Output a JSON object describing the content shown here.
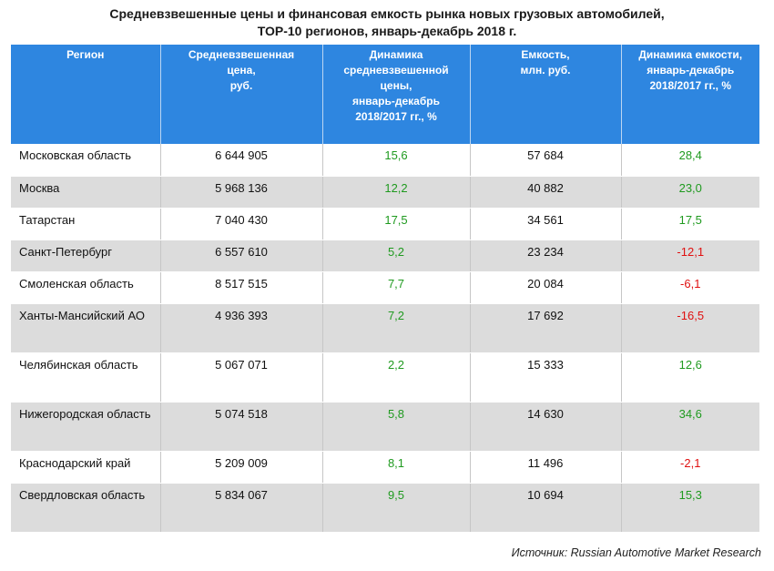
{
  "title": {
    "line1": "Средневзвешенные цены и финансовая емкость рынка новых грузовых автомобилей,",
    "line2": "ТОР-10 регионов, январь-декабрь 2018 г."
  },
  "table": {
    "headers": [
      "Регион",
      "Средневзвешенная цена, руб.",
      "Динамика средневзвешенной цены, январь-декабрь 2018/2017 гг., %",
      "Емкость, млн. руб.",
      "Динамика емкости, январь-декабрь 2018/2017 гг., %"
    ],
    "header_lines": [
      [
        "Регион"
      ],
      [
        "Средневзвешенная",
        "цена,",
        "руб."
      ],
      [
        "Динамика",
        "средневзвешенной",
        "цены,",
        "январь-декабрь",
        "2018/2017 гг., %"
      ],
      [
        "Емкость,",
        "млн. руб."
      ],
      [
        "Динамика емкости,",
        "январь-декабрь",
        "2018/2017 гг., %"
      ]
    ],
    "rows": [
      {
        "region": "Московская область",
        "price": "6 644 905",
        "price_dyn": "15,6",
        "capacity": "57 684",
        "capacity_dyn": "28,4"
      },
      {
        "region": "Москва",
        "price": "5 968 136",
        "price_dyn": "12,2",
        "capacity": "40 882",
        "capacity_dyn": "23,0"
      },
      {
        "region": "Татарстан",
        "price": "7 040 430",
        "price_dyn": "17,5",
        "capacity": "34 561",
        "capacity_dyn": "17,5"
      },
      {
        "region": "Санкт-Петербург",
        "price": "6 557 610",
        "price_dyn": "5,2",
        "capacity": "23 234",
        "capacity_dyn": "-12,1"
      },
      {
        "region": "Смоленская область",
        "price": "8 517 515",
        "price_dyn": "7,7",
        "capacity": "20 084",
        "capacity_dyn": "-6,1"
      },
      {
        "region": "Ханты-Мансийский АО",
        "price": "4 936 393",
        "price_dyn": "7,2",
        "capacity": "17 692",
        "capacity_dyn": "-16,5"
      },
      {
        "region": "Челябинская область",
        "price": "5 067 071",
        "price_dyn": "2,2",
        "capacity": "15 333",
        "capacity_dyn": "12,6"
      },
      {
        "region": "Нижегородская область",
        "price": "5 074 518",
        "price_dyn": "5,8",
        "capacity": "14 630",
        "capacity_dyn": "34,6"
      },
      {
        "region": "Краснодарский край",
        "price": "5 209 009",
        "price_dyn": "8,1",
        "capacity": "11 496",
        "capacity_dyn": "-2,1"
      },
      {
        "region": "Свердловская область",
        "price": "5 834 067",
        "price_dyn": "9,5",
        "capacity": "10 694",
        "capacity_dyn": "15,3"
      }
    ]
  },
  "source": "Источник: Russian Automotive Market Research",
  "colors": {
    "header_bg": "#2e86e0",
    "positive": "#1f9a1f",
    "negative": "#e01010",
    "zebra": "#dcdcdc"
  }
}
